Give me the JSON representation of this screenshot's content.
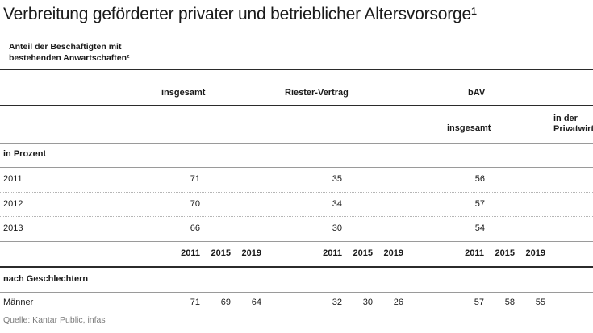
{
  "title": "Verbreitung geförderter privater und betrieblicher Altersvorsorge¹",
  "subtitle_line1": "Anteil der Beschäftigten mit",
  "subtitle_line2": "bestehenden Anwartschaften²",
  "header": {
    "insgesamt": "insgesamt",
    "riester": "Riester-Vertrag",
    "bav": "bAV",
    "bav_insgesamt": "insgesamt",
    "private_line1": "in der",
    "private_line2": "Privatwirtsc"
  },
  "section_percent": "in Prozent",
  "rows": [
    {
      "year": "2011",
      "insgesamt": "71",
      "riester": "35",
      "bav": "56"
    },
    {
      "year": "2012",
      "insgesamt": "70",
      "riester": "34",
      "bav": "57"
    },
    {
      "year": "2013",
      "insgesamt": "66",
      "riester": "30",
      "bav": "54"
    }
  ],
  "year_header": [
    "2011",
    "2015",
    "2019"
  ],
  "section_gender": "nach Geschlechtern",
  "partial_row": {
    "label": "Männer",
    "values": [
      "71",
      "69",
      "64",
      "32",
      "30",
      "26",
      "57",
      "58",
      "55"
    ]
  },
  "source": "Quelle:  Kantar Public, infas"
}
